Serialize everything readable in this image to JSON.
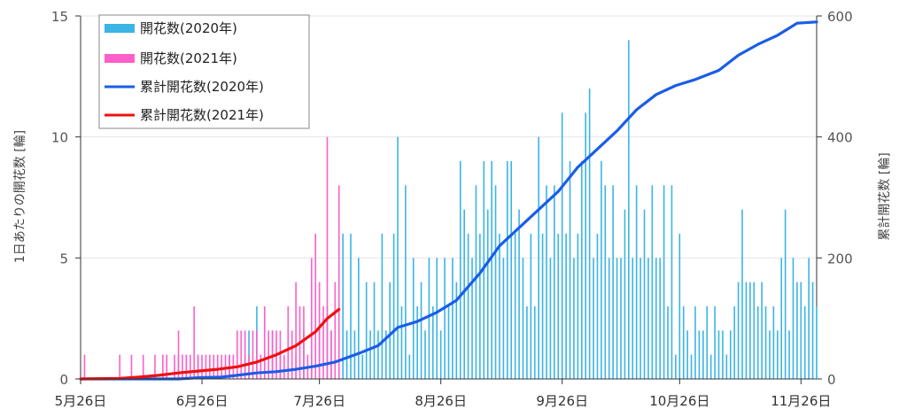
{
  "chart_data": {
    "type": "bar+line",
    "title": "",
    "xlabel": "",
    "ylabel_left": "1日あたりの開花数 [輪]",
    "ylabel_right": "累計開花数 [輪]",
    "ylim_left": [
      0,
      15
    ],
    "ylim_right": [
      0,
      600
    ],
    "yticks_left": [
      "0",
      "5",
      "10",
      "15"
    ],
    "yticks_right": [
      "0",
      "200",
      "400",
      "600"
    ],
    "x_axis": {
      "start": "2020-05-26",
      "end": "2020-11-30"
    },
    "xticks": [
      {
        "label": "5月26日",
        "date": "2020-05-26"
      },
      {
        "label": "6月26日",
        "date": "2020-06-26"
      },
      {
        "label": "7月26日",
        "date": "2020-07-26"
      },
      {
        "label": "8月26日",
        "date": "2020-08-26"
      },
      {
        "label": "9月26日",
        "date": "2020-09-26"
      },
      {
        "label": "10月26日",
        "date": "2020-10-26"
      },
      {
        "label": "11月26日",
        "date": "2020-11-26"
      }
    ],
    "legend_position": "top-left",
    "colors": {
      "bars_2020": "#3bb4e6",
      "bars_2021": "#ff5fc8",
      "cum_2020": "#1a5de6",
      "cum_2021": "#ee1111"
    },
    "series": [
      {
        "name": "開花数(2020年)",
        "type": "bar",
        "axis": "left",
        "color": "#3bb4e6",
        "points": [
          [
            "2020-06-20",
            1
          ],
          [
            "2020-06-22",
            1
          ],
          [
            "2020-06-25",
            1
          ],
          [
            "2020-07-03",
            1
          ],
          [
            "2020-07-07",
            1
          ],
          [
            "2020-07-08",
            2
          ],
          [
            "2020-07-10",
            3
          ],
          [
            "2020-07-12",
            1
          ],
          [
            "2020-07-14",
            2
          ],
          [
            "2020-07-16",
            1
          ],
          [
            "2020-07-18",
            2
          ],
          [
            "2020-07-20",
            1
          ],
          [
            "2020-07-22",
            2
          ],
          [
            "2020-07-24",
            1
          ],
          [
            "2020-07-26",
            2
          ],
          [
            "2020-07-28",
            3
          ],
          [
            "2020-07-29",
            2
          ],
          [
            "2020-07-31",
            2
          ],
          [
            "2020-08-01",
            6
          ],
          [
            "2020-08-02",
            2
          ],
          [
            "2020-08-03",
            6
          ],
          [
            "2020-08-04",
            2
          ],
          [
            "2020-08-05",
            5
          ],
          [
            "2020-08-06",
            1
          ],
          [
            "2020-08-07",
            4
          ],
          [
            "2020-08-08",
            2
          ],
          [
            "2020-08-09",
            4
          ],
          [
            "2020-08-10",
            2
          ],
          [
            "2020-08-11",
            6
          ],
          [
            "2020-08-12",
            2
          ],
          [
            "2020-08-13",
            4
          ],
          [
            "2020-08-14",
            6
          ],
          [
            "2020-08-15",
            10
          ],
          [
            "2020-08-16",
            3
          ],
          [
            "2020-08-17",
            8
          ],
          [
            "2020-08-18",
            1
          ],
          [
            "2020-08-19",
            5
          ],
          [
            "2020-08-20",
            3
          ],
          [
            "2020-08-21",
            4
          ],
          [
            "2020-08-22",
            2
          ],
          [
            "2020-08-23",
            5
          ],
          [
            "2020-08-24",
            3
          ],
          [
            "2020-08-25",
            5
          ],
          [
            "2020-08-26",
            2
          ],
          [
            "2020-08-27",
            5
          ],
          [
            "2020-08-28",
            3
          ],
          [
            "2020-08-29",
            5
          ],
          [
            "2020-08-30",
            4
          ],
          [
            "2020-08-31",
            9
          ],
          [
            "2020-09-01",
            7
          ],
          [
            "2020-09-02",
            6
          ],
          [
            "2020-09-03",
            5
          ],
          [
            "2020-09-04",
            8
          ],
          [
            "2020-09-05",
            6
          ],
          [
            "2020-09-06",
            9
          ],
          [
            "2020-09-07",
            7
          ],
          [
            "2020-09-08",
            9
          ],
          [
            "2020-09-09",
            8
          ],
          [
            "2020-09-10",
            6
          ],
          [
            "2020-09-11",
            5
          ],
          [
            "2020-09-12",
            9
          ],
          [
            "2020-09-13",
            9
          ],
          [
            "2020-09-14",
            6
          ],
          [
            "2020-09-15",
            7
          ],
          [
            "2020-09-16",
            5
          ],
          [
            "2020-09-17",
            3
          ],
          [
            "2020-09-18",
            6
          ],
          [
            "2020-09-19",
            3
          ],
          [
            "2020-09-20",
            10
          ],
          [
            "2020-09-21",
            6
          ],
          [
            "2020-09-22",
            8
          ],
          [
            "2020-09-23",
            5
          ],
          [
            "2020-09-24",
            8
          ],
          [
            "2020-09-25",
            6
          ],
          [
            "2020-09-26",
            11
          ],
          [
            "2020-09-27",
            6
          ],
          [
            "2020-09-28",
            9
          ],
          [
            "2020-09-29",
            5
          ],
          [
            "2020-09-30",
            6
          ],
          [
            "2020-10-01",
            9
          ],
          [
            "2020-10-02",
            11
          ],
          [
            "2020-10-03",
            12
          ],
          [
            "2020-10-04",
            5
          ],
          [
            "2020-10-05",
            6
          ],
          [
            "2020-10-06",
            9
          ],
          [
            "2020-10-07",
            8
          ],
          [
            "2020-10-08",
            5
          ],
          [
            "2020-10-09",
            8
          ],
          [
            "2020-10-10",
            5
          ],
          [
            "2020-10-11",
            5
          ],
          [
            "2020-10-12",
            7
          ],
          [
            "2020-10-13",
            14
          ],
          [
            "2020-10-14",
            5
          ],
          [
            "2020-10-15",
            8
          ],
          [
            "2020-10-16",
            5
          ],
          [
            "2020-10-17",
            7
          ],
          [
            "2020-10-18",
            5
          ],
          [
            "2020-10-19",
            8
          ],
          [
            "2020-10-20",
            5
          ],
          [
            "2020-10-21",
            5
          ],
          [
            "2020-10-22",
            8
          ],
          [
            "2020-10-23",
            3
          ],
          [
            "2020-10-24",
            8
          ],
          [
            "2020-10-25",
            1
          ],
          [
            "2020-10-26",
            6
          ],
          [
            "2020-10-27",
            3
          ],
          [
            "2020-10-28",
            2
          ],
          [
            "2020-10-29",
            1
          ],
          [
            "2020-10-30",
            3
          ],
          [
            "2020-10-31",
            2
          ],
          [
            "2020-11-01",
            2
          ],
          [
            "2020-11-02",
            3
          ],
          [
            "2020-11-03",
            1
          ],
          [
            "2020-11-04",
            3
          ],
          [
            "2020-11-05",
            2
          ],
          [
            "2020-11-06",
            2
          ],
          [
            "2020-11-07",
            1
          ],
          [
            "2020-11-08",
            2
          ],
          [
            "2020-11-09",
            3
          ],
          [
            "2020-11-10",
            4
          ],
          [
            "2020-11-11",
            7
          ],
          [
            "2020-11-12",
            4
          ],
          [
            "2020-11-13",
            4
          ],
          [
            "2020-11-14",
            4
          ],
          [
            "2020-11-15",
            3
          ],
          [
            "2020-11-16",
            4
          ],
          [
            "2020-11-17",
            3
          ],
          [
            "2020-11-18",
            2
          ],
          [
            "2020-11-19",
            3
          ],
          [
            "2020-11-20",
            2
          ],
          [
            "2020-11-21",
            5
          ],
          [
            "2020-11-22",
            7
          ],
          [
            "2020-11-23",
            2
          ],
          [
            "2020-11-24",
            5
          ],
          [
            "2020-11-25",
            4
          ],
          [
            "2020-11-26",
            4
          ],
          [
            "2020-11-27",
            3
          ],
          [
            "2020-11-28",
            5
          ],
          [
            "2020-11-29",
            4
          ],
          [
            "2020-11-30",
            3
          ]
        ]
      },
      {
        "name": "開花数(2021年)",
        "type": "bar",
        "axis": "left",
        "color": "#ff5fc8",
        "points": [
          [
            "2020-05-27",
            1
          ],
          [
            "2020-06-05",
            1
          ],
          [
            "2020-06-08",
            1
          ],
          [
            "2020-06-11",
            1
          ],
          [
            "2020-06-14",
            1
          ],
          [
            "2020-06-16",
            1
          ],
          [
            "2020-06-17",
            1
          ],
          [
            "2020-06-19",
            1
          ],
          [
            "2020-06-20",
            2
          ],
          [
            "2020-06-21",
            1
          ],
          [
            "2020-06-22",
            1
          ],
          [
            "2020-06-23",
            1
          ],
          [
            "2020-06-24",
            3
          ],
          [
            "2020-06-25",
            1
          ],
          [
            "2020-06-26",
            1
          ],
          [
            "2020-06-27",
            1
          ],
          [
            "2020-06-28",
            1
          ],
          [
            "2020-06-29",
            1
          ],
          [
            "2020-06-30",
            1
          ],
          [
            "2020-07-01",
            1
          ],
          [
            "2020-07-02",
            1
          ],
          [
            "2020-07-03",
            1
          ],
          [
            "2020-07-04",
            1
          ],
          [
            "2020-07-05",
            2
          ],
          [
            "2020-07-06",
            2
          ],
          [
            "2020-07-07",
            2
          ],
          [
            "2020-07-08",
            1
          ],
          [
            "2020-07-09",
            2
          ],
          [
            "2020-07-10",
            2
          ],
          [
            "2020-07-11",
            1
          ],
          [
            "2020-07-12",
            3
          ],
          [
            "2020-07-13",
            2
          ],
          [
            "2020-07-14",
            2
          ],
          [
            "2020-07-15",
            2
          ],
          [
            "2020-07-16",
            2
          ],
          [
            "2020-07-17",
            1
          ],
          [
            "2020-07-18",
            3
          ],
          [
            "2020-07-19",
            2
          ],
          [
            "2020-07-20",
            4
          ],
          [
            "2020-07-21",
            3
          ],
          [
            "2020-07-22",
            3
          ],
          [
            "2020-07-23",
            1
          ],
          [
            "2020-07-24",
            5
          ],
          [
            "2020-07-25",
            6
          ],
          [
            "2020-07-26",
            4
          ],
          [
            "2020-07-27",
            3
          ],
          [
            "2020-07-28",
            10
          ],
          [
            "2020-07-29",
            2
          ],
          [
            "2020-07-30",
            4
          ],
          [
            "2020-07-31",
            8
          ]
        ]
      },
      {
        "name": "累計開花数(2020年)",
        "type": "line",
        "axis": "right",
        "color": "#1a5de6",
        "points": [
          [
            "2020-05-26",
            0
          ],
          [
            "2020-06-20",
            0
          ],
          [
            "2020-06-25",
            2
          ],
          [
            "2020-07-01",
            3
          ],
          [
            "2020-07-05",
            6
          ],
          [
            "2020-07-10",
            10
          ],
          [
            "2020-07-15",
            12
          ],
          [
            "2020-07-20",
            16
          ],
          [
            "2020-07-25",
            21
          ],
          [
            "2020-07-30",
            28
          ],
          [
            "2020-08-05",
            42
          ],
          [
            "2020-08-10",
            55
          ],
          [
            "2020-08-15",
            85
          ],
          [
            "2020-08-20",
            95
          ],
          [
            "2020-08-25",
            110
          ],
          [
            "2020-08-30",
            130
          ],
          [
            "2020-09-05",
            175
          ],
          [
            "2020-09-10",
            220
          ],
          [
            "2020-09-15",
            250
          ],
          [
            "2020-09-20",
            280
          ],
          [
            "2020-09-25",
            310
          ],
          [
            "2020-09-30",
            350
          ],
          [
            "2020-10-05",
            380
          ],
          [
            "2020-10-10",
            410
          ],
          [
            "2020-10-15",
            445
          ],
          [
            "2020-10-20",
            470
          ],
          [
            "2020-10-25",
            485
          ],
          [
            "2020-10-30",
            495
          ],
          [
            "2020-11-05",
            510
          ],
          [
            "2020-11-10",
            535
          ],
          [
            "2020-11-15",
            553
          ],
          [
            "2020-11-20",
            568
          ],
          [
            "2020-11-25",
            588
          ],
          [
            "2020-11-30",
            590
          ]
        ]
      },
      {
        "name": "累計開花数(2021年)",
        "type": "line",
        "axis": "right",
        "color": "#ee1111",
        "points": [
          [
            "2020-05-26",
            0
          ],
          [
            "2020-06-05",
            1
          ],
          [
            "2020-06-10",
            3
          ],
          [
            "2020-06-15",
            6
          ],
          [
            "2020-06-20",
            10
          ],
          [
            "2020-06-25",
            13
          ],
          [
            "2020-06-30",
            16
          ],
          [
            "2020-07-05",
            20
          ],
          [
            "2020-07-10",
            28
          ],
          [
            "2020-07-15",
            40
          ],
          [
            "2020-07-20",
            55
          ],
          [
            "2020-07-25",
            78
          ],
          [
            "2020-07-28",
            100
          ],
          [
            "2020-07-31",
            115
          ]
        ]
      }
    ]
  }
}
